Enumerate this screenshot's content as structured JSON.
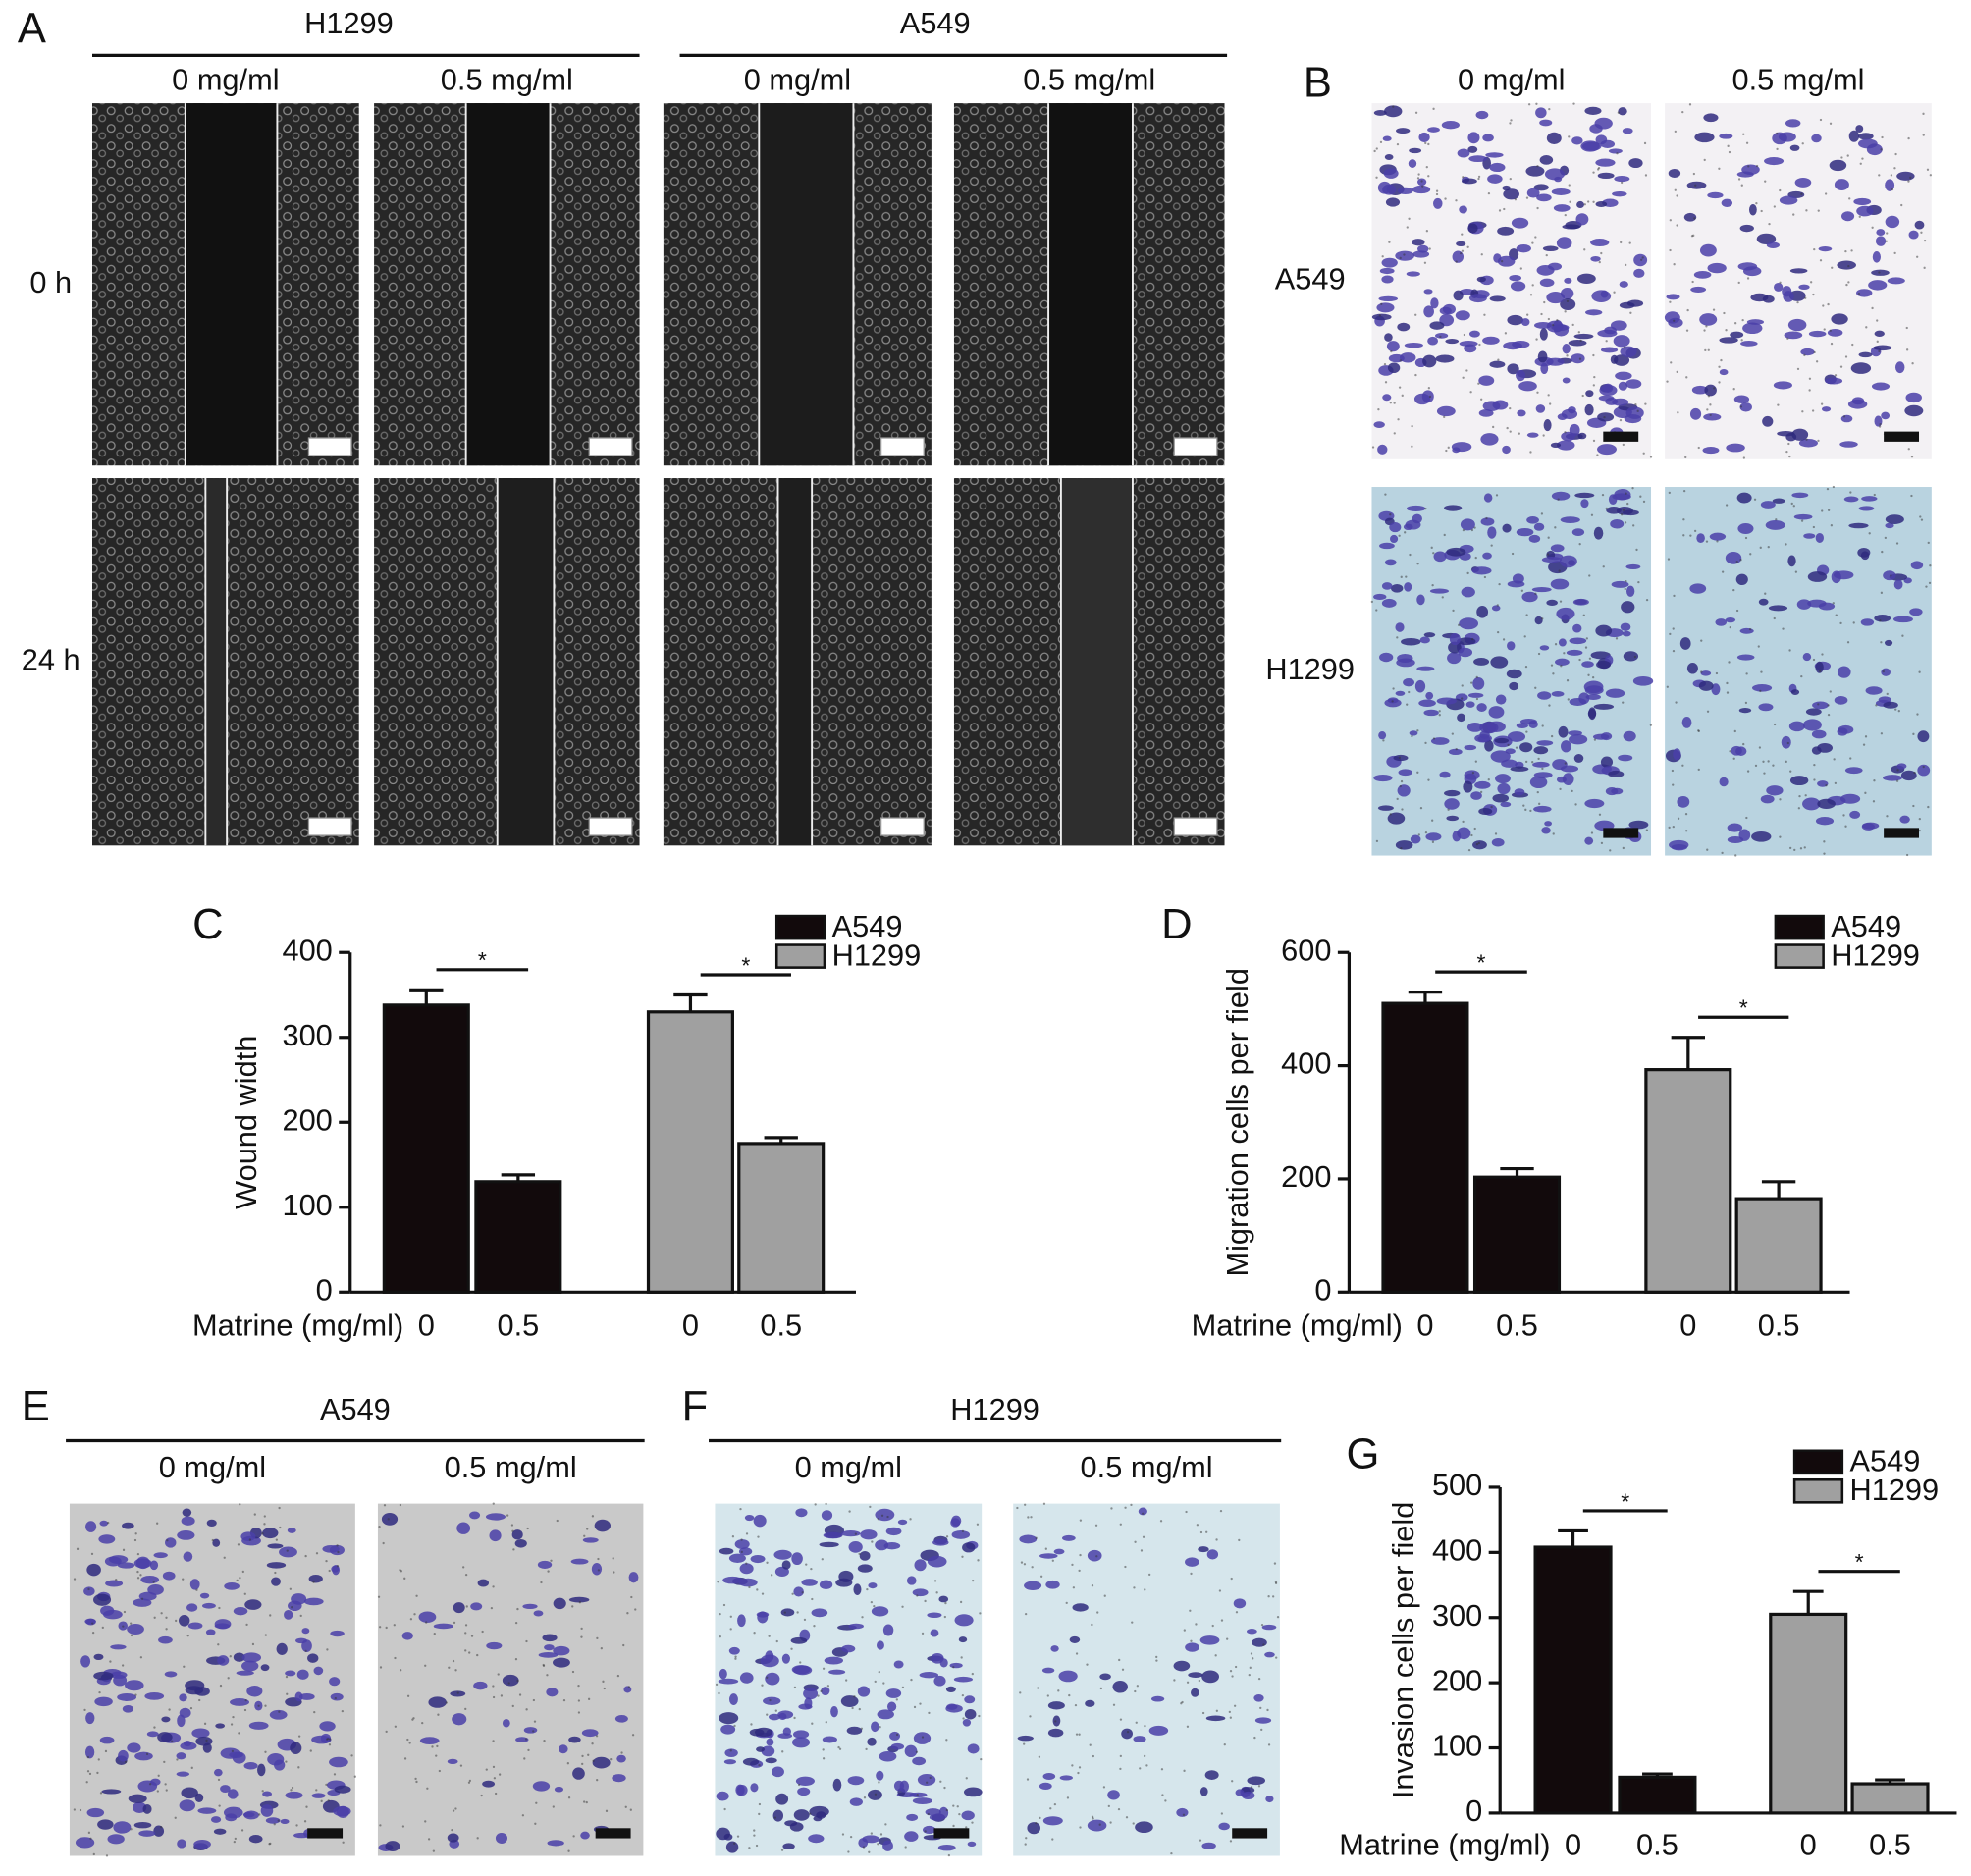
{
  "panels": {
    "A": {
      "letter": "A",
      "rows": [
        "0 h",
        "24 h"
      ],
      "groups": [
        {
          "title": "H1299",
          "columns": [
            "0 mg/ml",
            "0.5 mg/ml"
          ]
        },
        {
          "title": "A549",
          "columns": [
            "0 mg/ml",
            "0.5 mg/ml"
          ]
        }
      ]
    },
    "B": {
      "letter": "B",
      "columns": [
        "0 mg/ml",
        "0.5 mg/ml"
      ],
      "rows": [
        "A549",
        "H1299"
      ]
    },
    "E": {
      "letter": "E",
      "title": "A549",
      "columns": [
        "0 mg/ml",
        "0.5 mg/ml"
      ]
    },
    "F": {
      "letter": "F",
      "title": "H1299",
      "columns": [
        "0 mg/ml",
        "0.5 mg/ml"
      ]
    }
  },
  "chart_data": [
    {
      "type": "bar",
      "panel": "C",
      "y_label": "Wound width",
      "x_label": "Matrine (mg/ml)",
      "categories": [
        "0",
        "0.5"
      ],
      "ylim": [
        0,
        400
      ],
      "yticks": [
        0,
        100,
        200,
        300,
        400
      ],
      "series": [
        {
          "name": "A549",
          "color": "#120a0c",
          "values": [
            338,
            130
          ],
          "errors": [
            18,
            8
          ]
        },
        {
          "name": "H1299",
          "color": "#a0a0a0",
          "values": [
            330,
            175
          ],
          "errors": [
            20,
            7
          ]
        }
      ],
      "annotations": [
        "*",
        "*"
      ]
    },
    {
      "type": "bar",
      "panel": "D",
      "y_label": "Migration cells per field",
      "x_label": "Matrine (mg/ml)",
      "categories": [
        "0",
        "0.5"
      ],
      "ylim": [
        0,
        600
      ],
      "yticks": [
        0,
        200,
        400,
        600
      ],
      "series": [
        {
          "name": "A549",
          "color": "#120a0c",
          "values": [
            510,
            203
          ],
          "errors": [
            20,
            15
          ]
        },
        {
          "name": "H1299",
          "color": "#a0a0a0",
          "values": [
            393,
            165
          ],
          "errors": [
            57,
            30
          ]
        }
      ],
      "annotations": [
        "*",
        "*"
      ]
    },
    {
      "type": "bar",
      "panel": "G",
      "y_label": "Invasion cells per field",
      "x_label": "Matrine (mg/ml)",
      "categories": [
        "0",
        "0.5"
      ],
      "ylim": [
        0,
        500
      ],
      "yticks": [
        0,
        100,
        200,
        300,
        400,
        500
      ],
      "series": [
        {
          "name": "A549",
          "color": "#120a0c",
          "values": [
            408,
            55
          ],
          "errors": [
            25,
            5
          ]
        },
        {
          "name": "H1299",
          "color": "#a0a0a0",
          "values": [
            305,
            45
          ],
          "errors": [
            35,
            6
          ]
        }
      ],
      "annotations": [
        "*",
        "*"
      ]
    }
  ]
}
